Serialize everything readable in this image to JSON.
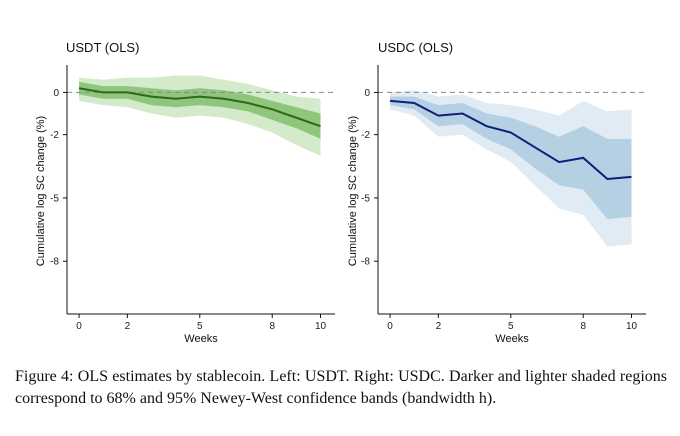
{
  "caption": "Figure 4: OLS estimates by stablecoin. Left: USDT. Right: USDC. Darker and lighter shaded regions correspond to 68% and 95% Newey-West confidence bands (bandwidth h).",
  "colors": {
    "usdt_line": "#2b6a1b",
    "usdt_band68": "#8fc57d",
    "usdt_band95": "#d3ebcb",
    "usdc_line": "#0f1f78",
    "usdc_band68": "#b5cfe3",
    "usdc_band95": "#e1ebf4",
    "zero_line": "#888888",
    "axis": "#111111"
  },
  "chart_data": [
    {
      "type": "line",
      "title": "USDT (OLS)",
      "xlabel": "Weeks",
      "ylabel": "Cumulative log SC change (%)",
      "xlim": [
        -0.5,
        10.6
      ],
      "ylim": [
        -10.5,
        1.3
      ],
      "x_ticks": [
        0,
        2,
        5,
        8,
        10
      ],
      "x_tick_labels": [
        "0",
        "2",
        "5",
        "8",
        "10"
      ],
      "y_ticks": [
        0,
        -2,
        -5,
        -8
      ],
      "y_tick_labels": [
        "0",
        "-2",
        "-5",
        "-8"
      ],
      "x": [
        0,
        1,
        2,
        3,
        4,
        5,
        6,
        7,
        8,
        9,
        10
      ],
      "series": [
        {
          "name": "USDT estimate",
          "values": [
            0.2,
            0.0,
            0.0,
            -0.2,
            -0.3,
            -0.2,
            -0.3,
            -0.5,
            -0.8,
            -1.2,
            -1.6
          ]
        },
        {
          "name": "68% band upper",
          "values": [
            0.5,
            0.3,
            0.3,
            0.2,
            0.1,
            0.2,
            0.1,
            -0.1,
            -0.4,
            -0.7,
            -1.0
          ]
        },
        {
          "name": "68% band lower",
          "values": [
            -0.1,
            -0.3,
            -0.3,
            -0.6,
            -0.7,
            -0.6,
            -0.7,
            -0.9,
            -1.3,
            -1.7,
            -2.2
          ]
        },
        {
          "name": "95% band upper",
          "values": [
            0.7,
            0.6,
            0.7,
            0.7,
            0.8,
            0.8,
            0.6,
            0.4,
            0.1,
            -0.2,
            -0.3
          ]
        },
        {
          "name": "95% band lower",
          "values": [
            -0.4,
            -0.6,
            -0.7,
            -1.0,
            -1.2,
            -1.1,
            -1.2,
            -1.5,
            -1.9,
            -2.5,
            -3.0
          ]
        }
      ]
    },
    {
      "type": "line",
      "title": "USDC (OLS)",
      "xlabel": "Weeks",
      "ylabel": "Cumulative log SC change (%)",
      "xlim": [
        -0.5,
        10.6
      ],
      "ylim": [
        -10.5,
        1.3
      ],
      "x_ticks": [
        0,
        2,
        5,
        8,
        10
      ],
      "x_tick_labels": [
        "0",
        "2",
        "5",
        "8",
        "10"
      ],
      "y_ticks": [
        0,
        -2,
        -5,
        -8
      ],
      "y_tick_labels": [
        "0",
        "-2",
        "-5",
        "-8"
      ],
      "x": [
        0,
        1,
        2,
        3,
        4,
        5,
        6,
        7,
        8,
        9,
        10
      ],
      "series": [
        {
          "name": "USDC estimate",
          "values": [
            -0.4,
            -0.5,
            -1.1,
            -1.0,
            -1.6,
            -1.9,
            -2.6,
            -3.3,
            -3.1,
            -4.1,
            -4.0
          ]
        },
        {
          "name": "68% band upper",
          "values": [
            -0.2,
            -0.2,
            -0.6,
            -0.5,
            -1.0,
            -1.2,
            -1.6,
            -2.1,
            -1.6,
            -2.2,
            -2.2
          ]
        },
        {
          "name": "68% band lower",
          "values": [
            -0.6,
            -0.8,
            -1.6,
            -1.5,
            -2.2,
            -2.7,
            -3.6,
            -4.4,
            -4.6,
            -6.0,
            -5.9
          ]
        },
        {
          "name": "95% band upper",
          "values": [
            0.0,
            0.1,
            -0.2,
            -0.1,
            -0.5,
            -0.6,
            -0.8,
            -1.1,
            -0.4,
            -0.9,
            -0.8
          ]
        },
        {
          "name": "95% band lower",
          "values": [
            -0.8,
            -1.1,
            -2.1,
            -2.0,
            -2.7,
            -3.3,
            -4.4,
            -5.5,
            -5.8,
            -7.3,
            -7.2
          ]
        }
      ]
    }
  ]
}
